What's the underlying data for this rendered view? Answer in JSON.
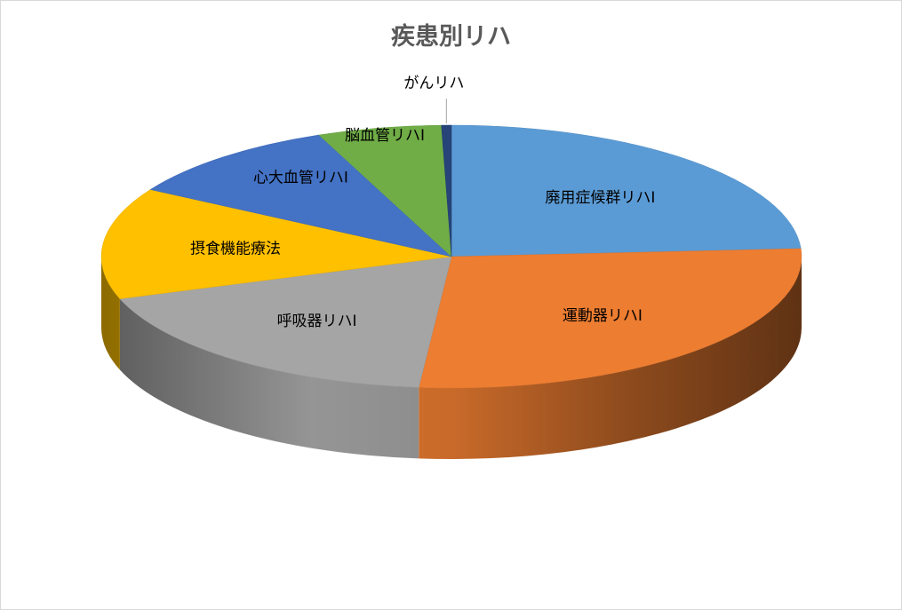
{
  "chart_data": {
    "type": "pie",
    "title": "疾患別リハ",
    "categories": [
      "廃用症候群リハⅠ",
      "運動器リハⅠ",
      "呼吸器リハⅠ",
      "摂食機能療法",
      "心大血管リハⅠ",
      "脳血管リハⅠ",
      "がんリハ"
    ],
    "values": [
      21,
      24,
      16,
      12,
      9,
      5,
      0.4
    ],
    "unit": "%",
    "colors": [
      "#5B9BD5",
      "#ED7D31",
      "#A5A5A5",
      "#FFC000",
      "#4472C4",
      "#70AD47",
      "#264478"
    ],
    "start_angle_deg": 0,
    "direction": "clockwise",
    "style": "3d",
    "legend": "none"
  }
}
